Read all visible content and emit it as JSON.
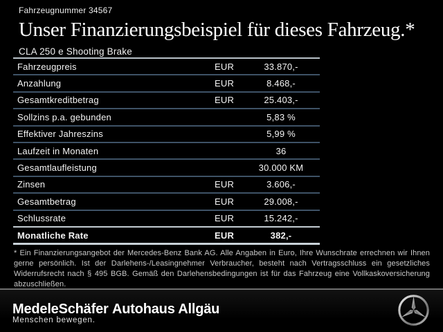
{
  "header": {
    "vehicle_number": "Fahrzeugnummer 34567",
    "title": "Unser Finanzierungsbeispiel für dieses Fahrzeug.*",
    "model": "CLA 250 e Shooting Brake"
  },
  "table": {
    "rows": [
      {
        "label": "Fahrzeugpreis",
        "currency": "EUR",
        "value": "33.870,-",
        "bold": false
      },
      {
        "label": "Anzahlung",
        "currency": "EUR",
        "value": "8.468,-",
        "bold": false
      },
      {
        "label": "Gesamtkreditbetrag",
        "currency": "EUR",
        "value": "25.403,-",
        "bold": false
      },
      {
        "label": "Sollzins p.a. gebunden",
        "currency": "",
        "value": "5,83 %",
        "bold": false
      },
      {
        "label": "Effektiver Jahreszins",
        "currency": "",
        "value": "5,99 %",
        "bold": false
      },
      {
        "label": "Laufzeit in Monaten",
        "currency": "",
        "value": "36",
        "bold": false
      },
      {
        "label": "Gesamtlaufleistung",
        "currency": "",
        "value": "30.000 KM",
        "bold": false
      },
      {
        "label": "Zinsen",
        "currency": "EUR",
        "value": "3.606,-",
        "bold": false
      },
      {
        "label": "Gesamtbetrag",
        "currency": "EUR",
        "value": "29.008,-",
        "bold": false
      },
      {
        "label": "Schlussrate",
        "currency": "EUR",
        "value": "15.242,-",
        "bold": false
      },
      {
        "label": "Monatliche Rate",
        "currency": "EUR",
        "value": "382,-",
        "bold": true
      }
    ]
  },
  "footnote": "* Ein Finanzierungsangebot der Mercedes-Benz Bank AG. Alle Angaben in Euro, Ihre Wunschrate errechnen wir Ihnen gerne persönlich. Ist der Darlehens-/Leasingnehmer Verbraucher, besteht nach Vertragsschluss ein gesetzliches Widerrufsrecht nach § 495 BGB. Gemäß den Darlehensbedingungen ist für das Fahrzeug eine Vollkaskoversicherung abzuschließen.",
  "footer": {
    "dealer1": "MedeleSchäfer",
    "dealer1_tagline": "Menschen bewegen.",
    "dealer2": "Autohaus Allgäu",
    "brand_icon": "mercedes-star-icon"
  },
  "colors": {
    "background": "#000000",
    "text": "#f2f2f2",
    "table_inner_line": "#3e5266",
    "table_outer_line": "#b9c2c9",
    "footnote_text": "#c9c9c9",
    "footer_separator": "#6f6f6f"
  }
}
